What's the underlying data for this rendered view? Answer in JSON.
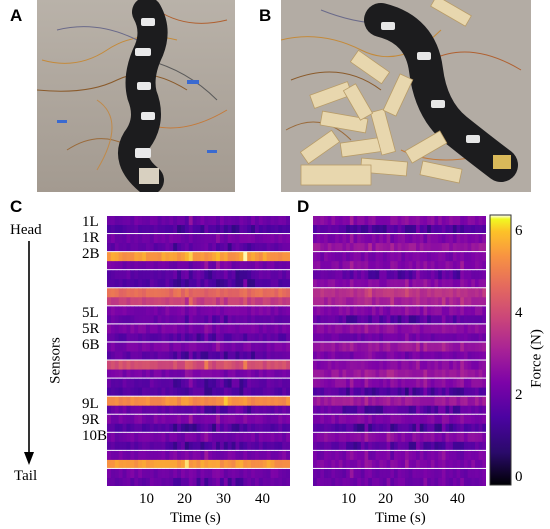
{
  "figure": {
    "panel_labels": {
      "a": "A",
      "b": "B",
      "c": "C",
      "d": "D"
    },
    "photo_a_desc": "",
    "photo_b_desc": "",
    "axis": {
      "head_label": "Head",
      "tail_label": "Tail",
      "y_title": "Sensors",
      "x_title": "Time (s)",
      "x_ticks": [
        "10",
        "20",
        "30",
        "40"
      ],
      "sensor_labels": [
        "1L",
        "1R",
        "2B",
        "5L",
        "5R",
        "6B",
        "9L",
        "9R",
        "10B"
      ]
    },
    "colorbar": {
      "title": "Force (N)",
      "ticks": [
        "0",
        "2",
        "4",
        "6"
      ],
      "range": [
        0,
        6.5
      ]
    }
  },
  "chart_data": [
    {
      "type": "heatmap",
      "panel": "C",
      "xlabel": "Time (s)",
      "ylabel": "Sensors",
      "x_ticks": [
        10,
        20,
        30,
        40
      ],
      "xlim": [
        0,
        47
      ],
      "rows": 30,
      "row_labels": {
        "0": "1L",
        "2": "1R",
        "4": "2B",
        "12": "5L",
        "14": "5R",
        "16": "6B",
        "23": "9L",
        "25": "9R",
        "27": "10B"
      },
      "row_force_estimates_N": [
        2.2,
        1.8,
        2.3,
        2.0,
        5.6,
        2.3,
        2.0,
        1.8,
        4.8,
        3.9,
        2.4,
        2.1,
        2.4,
        1.9,
        2.4,
        2.0,
        4.2,
        2.4,
        2.0,
        1.8,
        5.4,
        2.1,
        2.4,
        1.8,
        2.3,
        1.9,
        2.4,
        5.6,
        2.3,
        2.1
      ]
    },
    {
      "type": "heatmap",
      "panel": "D",
      "xlabel": "Time (s)",
      "x_ticks": [
        10,
        20,
        30,
        40
      ],
      "xlim": [
        0,
        47
      ],
      "rows": 30,
      "row_force_estimates_N": [
        2.6,
        1.9,
        2.5,
        2.9,
        2.4,
        2.6,
        2.1,
        2.6,
        3.6,
        3.2,
        2.6,
        2.0,
        2.7,
        2.2,
        2.9,
        2.4,
        2.6,
        2.9,
        2.6,
        1.9,
        3.0,
        2.1,
        2.5,
        1.8,
        2.6,
        2.0,
        2.4,
        2.5,
        2.2,
        2.2
      ],
      "colorbar": {
        "label": "Force (N)",
        "ticks": [
          0,
          2,
          4,
          6
        ],
        "range": [
          0,
          6.5
        ]
      }
    }
  ]
}
